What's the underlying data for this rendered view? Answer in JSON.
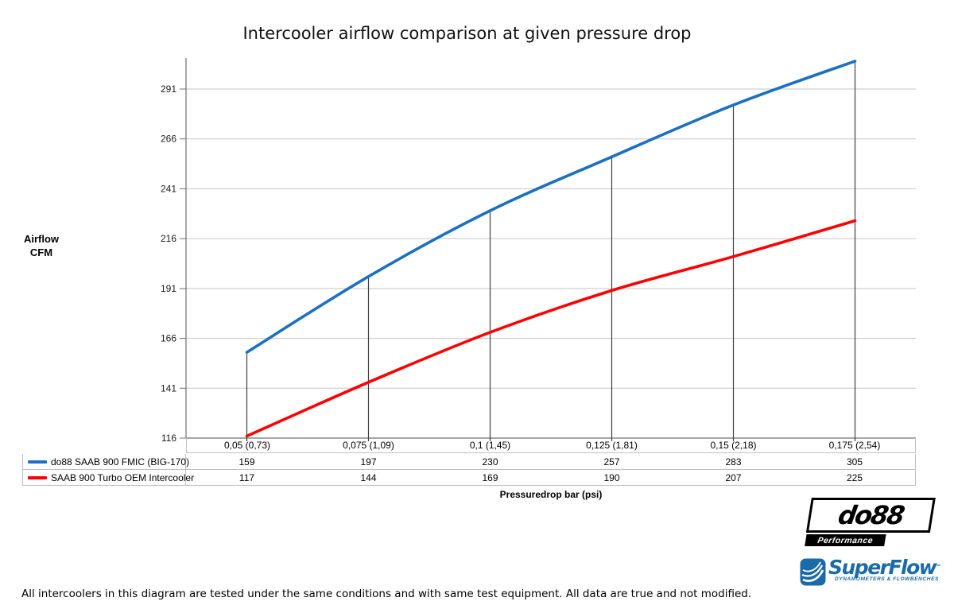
{
  "title": "Intercooler airflow comparison at given pressure drop",
  "y_axis": {
    "label_line1": "Airflow",
    "label_line2": "CFM"
  },
  "x_axis": {
    "label": "Pressuredrop bar (psi)"
  },
  "footer": "All intercoolers in this diagram are tested under the same conditions and with same test equipment. All data are true and not modified.",
  "chart_data": {
    "type": "line",
    "title": "Intercooler airflow comparison at given pressure drop",
    "xlabel": "Pressuredrop bar (psi)",
    "ylabel": "Airflow CFM",
    "categories": [
      "0,05 (0,73)",
      "0,075 (1,09)",
      "0,1 (1,45)",
      "0,125 (1,81)",
      "0,15 (2,18)",
      "0,175 (2,54)"
    ],
    "series": [
      {
        "name": "do88 SAAB 900 FMIC (BIG-170)",
        "color": "#1C70C2",
        "values": [
          159,
          197,
          230,
          257,
          283,
          305
        ]
      },
      {
        "name": "SAAB 900 Turbo OEM Intercooler",
        "color": "#FF0000",
        "values": [
          117,
          144,
          169,
          190,
          207,
          225
        ]
      }
    ],
    "yticks": [
      116,
      141,
      166,
      191,
      216,
      241,
      266,
      291
    ],
    "ylim": [
      116,
      306
    ],
    "grid": true,
    "smooth": true,
    "drop_lines_from_series": 0,
    "legend_position": "table-left"
  },
  "colors": {
    "grid": "#C6C6C6",
    "axis": "#707070",
    "drop_line": "#3F3F3F",
    "table_border": "#BFBFBF",
    "tick_text": "#1a1a1a"
  },
  "logos": {
    "do88": {
      "text": "do88",
      "subtext": "Performance"
    },
    "superflow": {
      "text": "SuperFlow",
      "trademark": "™",
      "subtext": "DYNAMOMETERS & FLOWBENCHES",
      "color": "#1B6AA9"
    }
  }
}
